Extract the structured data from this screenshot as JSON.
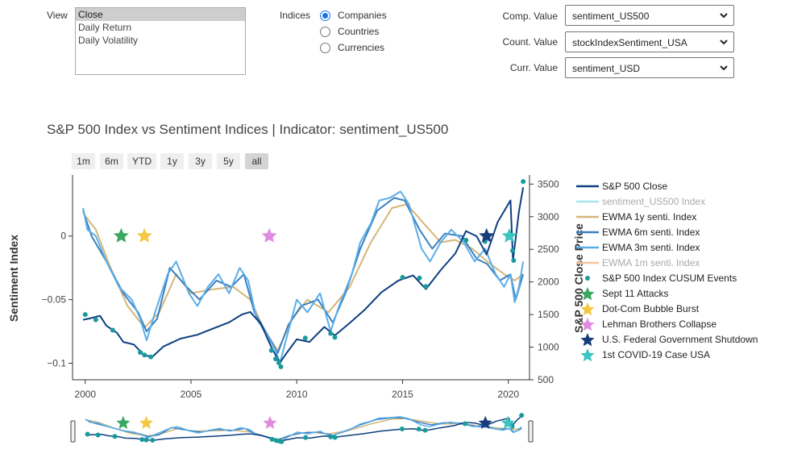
{
  "controls": {
    "view_label": "View",
    "view_options": [
      "Close",
      "Daily Return",
      "Daily Volatility"
    ],
    "view_selected": "Close",
    "indices_label": "Indices",
    "indices_options": [
      "Companies",
      "Countries",
      "Currencies"
    ],
    "indices_selected": "Companies",
    "comp_label": "Comp. Value",
    "comp_value": "sentiment_US500",
    "count_label": "Count. Value",
    "count_value": "stockIndexSentiment_USA",
    "curr_label": "Curr. Value",
    "curr_value": "sentiment_USD"
  },
  "range_buttons": [
    "1m",
    "6m",
    "YTD",
    "1y",
    "3y",
    "5y",
    "all"
  ],
  "range_active": "all",
  "chart_data": {
    "type": "line",
    "title": "S&P 500 Index vs Sentiment Indices | Indicator: sentiment_US500",
    "ylabel": "Sentiment Index",
    "y2label": "S&P 500 Close Price",
    "xlabel": "",
    "xlim": [
      1999.4,
      2021.0
    ],
    "ylim": [
      -0.113,
      0.048
    ],
    "y2lim": [
      500,
      3640
    ],
    "x_ticks": [
      "2000",
      "2005",
      "2010",
      "2015",
      "2020"
    ],
    "x_tick_values": [
      2000,
      2005,
      2010,
      2015,
      2020
    ],
    "y_ticks": [
      "0",
      "−0.05",
      "−0.1"
    ],
    "y_tick_values": [
      0,
      -0.05,
      -0.1
    ],
    "y2_ticks": [
      "500",
      "1000",
      "1500",
      "2000",
      "2500",
      "3000",
      "3500"
    ],
    "y2_tick_values": [
      500,
      1000,
      1500,
      2000,
      2500,
      3000,
      3500
    ],
    "grid": false,
    "legend_position": "right",
    "series": [
      {
        "name": "S&P 500 Close",
        "axis": "y2",
        "color": "#0d3f7f",
        "visible": true,
        "x": [
          1999.9,
          2000.2,
          2000.7,
          2001.0,
          2001.5,
          2001.8,
          2002.3,
          2002.8,
          2003.2,
          2003.7,
          2004.5,
          2005.3,
          2006.0,
          2006.8,
          2007.4,
          2007.8,
          2008.3,
          2008.8,
          2009.2,
          2009.5,
          2010.0,
          2010.6,
          2011.3,
          2011.8,
          2012.5,
          2013.2,
          2014.0,
          2014.8,
          2015.5,
          2016.1,
          2016.8,
          2017.5,
          2018.0,
          2018.5,
          2018.97,
          2019.5,
          2020.1,
          2020.22,
          2020.5,
          2020.7
        ],
        "y": [
          1420,
          1440,
          1480,
          1330,
          1220,
          1080,
          1040,
          870,
          860,
          1010,
          1130,
          1190,
          1280,
          1380,
          1500,
          1540,
          1360,
          1000,
          760,
          900,
          1120,
          1080,
          1310,
          1180,
          1370,
          1570,
          1840,
          2020,
          2100,
          1890,
          2180,
          2440,
          2780,
          2700,
          2420,
          2920,
          3250,
          2330,
          3080,
          3450
        ]
      },
      {
        "name": "sentiment_US500 Index",
        "axis": "y",
        "color": "#a8e6ef",
        "visible": false,
        "x": [],
        "y": []
      },
      {
        "name": "EWMA 1y senti. Index",
        "axis": "y",
        "color": "#d4b679",
        "visible": true,
        "x": [
          1999.9,
          2000.5,
          2001.2,
          2002.0,
          2002.8,
          2003.5,
          2004.3,
          2005.0,
          2006.0,
          2007.0,
          2007.8,
          2008.5,
          2009.1,
          2009.8,
          2010.5,
          2011.5,
          2012.5,
          2013.5,
          2014.5,
          2015.2,
          2016.0,
          2016.8,
          2017.5,
          2018.3,
          2019.0,
          2019.8,
          2020.3,
          2020.7
        ],
        "y": [
          0.018,
          0.005,
          -0.025,
          -0.055,
          -0.072,
          -0.06,
          -0.03,
          -0.045,
          -0.042,
          -0.04,
          -0.05,
          -0.075,
          -0.09,
          -0.065,
          -0.05,
          -0.06,
          -0.04,
          -0.005,
          0.022,
          0.025,
          0.01,
          -0.005,
          -0.003,
          -0.01,
          -0.02,
          -0.03,
          -0.035,
          -0.03
        ]
      },
      {
        "name": "EWMA 6m senti. Index",
        "axis": "y",
        "color": "#3a7fc0",
        "visible": true,
        "x": [
          1999.9,
          2000.3,
          2001.0,
          2001.8,
          2002.5,
          2002.9,
          2003.4,
          2004.0,
          2004.8,
          2005.4,
          2006.2,
          2006.9,
          2007.5,
          2008.0,
          2008.7,
          2009.1,
          2009.6,
          2010.2,
          2011.0,
          2011.7,
          2012.3,
          2013.0,
          2013.8,
          2014.6,
          2015.1,
          2015.8,
          2016.4,
          2017.0,
          2017.8,
          2018.5,
          2019.0,
          2019.6,
          2020.1,
          2020.35,
          2020.7
        ],
        "y": [
          0.02,
          0.0,
          -0.02,
          -0.045,
          -0.06,
          -0.075,
          -0.065,
          -0.025,
          -0.04,
          -0.05,
          -0.035,
          -0.04,
          -0.03,
          -0.06,
          -0.08,
          -0.092,
          -0.07,
          -0.055,
          -0.05,
          -0.068,
          -0.045,
          -0.01,
          0.02,
          0.03,
          0.028,
          0.005,
          -0.01,
          0.002,
          0.0,
          -0.018,
          -0.022,
          -0.035,
          -0.03,
          -0.05,
          -0.03
        ]
      },
      {
        "name": "EWMA 3m senti. Index",
        "axis": "y",
        "color": "#5aaee8",
        "visible": true,
        "x": [
          1999.9,
          2000.1,
          2000.5,
          2001.0,
          2001.6,
          2002.2,
          2002.6,
          2002.9,
          2003.3,
          2003.9,
          2004.3,
          2004.9,
          2005.3,
          2005.8,
          2006.3,
          2006.8,
          2007.3,
          2007.7,
          2008.1,
          2008.6,
          2009.0,
          2009.2,
          2009.6,
          2010.0,
          2010.5,
          2011.1,
          2011.6,
          2012.0,
          2012.6,
          2013.0,
          2013.5,
          2013.9,
          2014.4,
          2014.9,
          2015.3,
          2015.9,
          2016.3,
          2016.8,
          2017.3,
          2017.9,
          2018.4,
          2018.9,
          2019.4,
          2019.8,
          2020.1,
          2020.3,
          2020.5,
          2020.7
        ],
        "y": [
          0.022,
          0.005,
          0.0,
          -0.02,
          -0.04,
          -0.05,
          -0.065,
          -0.082,
          -0.06,
          -0.03,
          -0.02,
          -0.045,
          -0.055,
          -0.04,
          -0.03,
          -0.045,
          -0.025,
          -0.035,
          -0.065,
          -0.078,
          -0.09,
          -0.1,
          -0.075,
          -0.05,
          -0.06,
          -0.045,
          -0.075,
          -0.055,
          -0.03,
          -0.005,
          0.01,
          0.028,
          0.03,
          0.035,
          0.025,
          -0.01,
          -0.02,
          -0.005,
          0.005,
          -0.005,
          -0.02,
          -0.01,
          -0.03,
          -0.04,
          -0.03,
          -0.052,
          -0.04,
          -0.02
        ]
      },
      {
        "name": "EWMA 1m senti. Index",
        "axis": "y",
        "color": "#f2c5a0",
        "visible": false,
        "x": [],
        "y": []
      },
      {
        "name": "S&P 500 Index CUSUM Events",
        "axis": "y2",
        "color": "#1a9a9a",
        "visible": true,
        "mode": "markers",
        "x": [
          2000.0,
          2000.5,
          2001.3,
          2002.6,
          2002.8,
          2003.1,
          2008.8,
          2009.0,
          2009.15,
          2009.25,
          2010.4,
          2011.6,
          2011.8,
          2015.0,
          2015.8,
          2016.1,
          2018.0,
          2018.9,
          2020.2,
          2020.25,
          2020.7
        ],
        "y": [
          1500,
          1420,
          1260,
          920,
          880,
          850,
          950,
          820,
          760,
          700,
          1140,
          1210,
          1150,
          2070,
          2060,
          1930,
          2640,
          2620,
          2480,
          2330,
          3540
        ]
      },
      {
        "name": "Sept 11 Attacks",
        "axis": "y",
        "color": "#3aa860",
        "visible": true,
        "mode": "star",
        "x": [
          2001.7
        ],
        "y": [
          0.0
        ]
      },
      {
        "name": "Dot-Com Bubble Burst",
        "axis": "y",
        "color": "#f5c842",
        "visible": true,
        "mode": "star",
        "x": [
          2002.8
        ],
        "y": [
          0.0
        ]
      },
      {
        "name": "Lehman Brothers Collapse",
        "axis": "y",
        "color": "#e08ae0",
        "visible": true,
        "mode": "star",
        "x": [
          2008.7
        ],
        "y": [
          0.0
        ]
      },
      {
        "name": "U.S. Federal Government Shutdown",
        "axis": "y",
        "color": "#173e7a",
        "visible": true,
        "mode": "star",
        "x": [
          2018.97
        ],
        "y": [
          0.0
        ]
      },
      {
        "name": "1st COVID-19 Case USA",
        "axis": "y",
        "color": "#3cc4c0",
        "visible": true,
        "mode": "star",
        "x": [
          2020.05
        ],
        "y": [
          0.0
        ]
      }
    ]
  }
}
